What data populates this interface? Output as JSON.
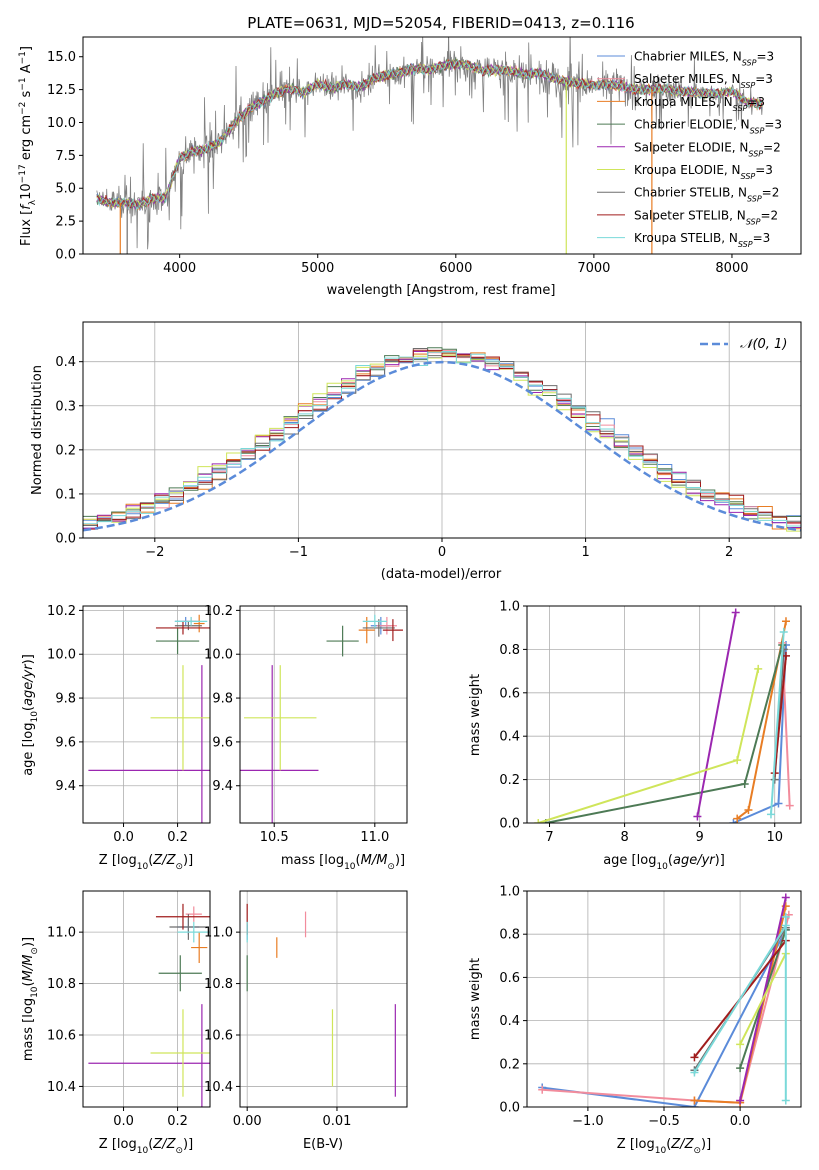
{
  "title": "PLATE=0631, MJD=52054, FIBERID=0413, z=0.116",
  "colors": {
    "chabrier_miles": "#5b8bd9",
    "salpeter_miles": "#f28c9c",
    "kroupa_miles": "#e87d24",
    "chabrier_elodie": "#4d7a55",
    "salpeter_elodie": "#9b27b0",
    "kroupa_elodie": "#cfe55a",
    "chabrier_stelib": "#6e6e6e",
    "salpeter_stelib": "#a01c1c",
    "kroupa_stelib": "#7ad9d9",
    "data_spectrum": "#808080",
    "normal_curve": "#5b8bd9"
  },
  "chart_data": [
    {
      "id": "spectrum",
      "type": "line",
      "xlabel": "wavelength [Angstrom, rest frame]",
      "ylabel": "Flux [f_λ10^-17 erg cm^-2 s^-1 A^-1]",
      "xlim": [
        3300,
        8500
      ],
      "ylim": [
        0,
        16.5
      ],
      "xticks": [
        4000,
        5000,
        6000,
        7000,
        8000
      ],
      "yticks": [
        0.0,
        2.5,
        5.0,
        7.5,
        10.0,
        12.5,
        15.0
      ],
      "grid": false,
      "legend_position": "top-right",
      "legend": [
        {
          "label": "Chabrier MILES, N",
          "sub": "SSP",
          "suffix": "=3",
          "color_key": "chabrier_miles"
        },
        {
          "label": "Salpeter MILES, N",
          "sub": "SSP",
          "suffix": "=3",
          "color_key": "salpeter_miles"
        },
        {
          "label": "Kroupa MILES, N",
          "sub": "SSP",
          "suffix": "=3",
          "color_key": "kroupa_miles"
        },
        {
          "label": "Chabrier ELODIE, N",
          "sub": "SSP",
          "suffix": "=3",
          "color_key": "chabrier_elodie"
        },
        {
          "label": "Salpeter ELODIE, N",
          "sub": "SSP",
          "suffix": "=2",
          "color_key": "salpeter_elodie"
        },
        {
          "label": "Kroupa ELODIE, N",
          "sub": "SSP",
          "suffix": "=3",
          "color_key": "kroupa_elodie"
        },
        {
          "label": "Chabrier STELIB, N",
          "sub": "SSP",
          "suffix": "=2",
          "color_key": "chabrier_stelib"
        },
        {
          "label": "Salpeter STELIB, N",
          "sub": "SSP",
          "suffix": "=2",
          "color_key": "salpeter_stelib"
        },
        {
          "label": "Kroupa STELIB, N",
          "sub": "SSP",
          "suffix": "=3",
          "color_key": "kroupa_stelib"
        }
      ],
      "continuum": [
        [
          3400,
          4.2
        ],
        [
          3500,
          3.9
        ],
        [
          3600,
          3.9
        ],
        [
          3700,
          3.7
        ],
        [
          3800,
          4.2
        ],
        [
          3900,
          4.3
        ],
        [
          4000,
          7.3
        ],
        [
          4100,
          7.8
        ],
        [
          4200,
          8.0
        ],
        [
          4300,
          8.6
        ],
        [
          4400,
          10.0
        ],
        [
          4500,
          11.0
        ],
        [
          4600,
          11.6
        ],
        [
          4700,
          12.2
        ],
        [
          4800,
          12.6
        ],
        [
          4900,
          12.3
        ],
        [
          5000,
          12.9
        ],
        [
          5100,
          12.6
        ],
        [
          5200,
          12.9
        ],
        [
          5300,
          12.7
        ],
        [
          5400,
          13.3
        ],
        [
          5500,
          13.6
        ],
        [
          5600,
          13.8
        ],
        [
          5700,
          14.1
        ],
        [
          5800,
          14.0
        ],
        [
          5900,
          14.3
        ],
        [
          6000,
          14.5
        ],
        [
          6100,
          14.3
        ],
        [
          6200,
          13.9
        ],
        [
          6300,
          14.0
        ],
        [
          6400,
          13.9
        ],
        [
          6500,
          13.6
        ],
        [
          6600,
          13.8
        ],
        [
          6700,
          13.4
        ],
        [
          6800,
          13.1
        ],
        [
          6900,
          13.0
        ],
        [
          7000,
          12.8
        ],
        [
          7100,
          12.9
        ],
        [
          7200,
          12.8
        ],
        [
          7300,
          12.5
        ],
        [
          7400,
          12.5
        ],
        [
          7500,
          12.6
        ],
        [
          7600,
          12.4
        ],
        [
          7700,
          12.3
        ],
        [
          7800,
          12.2
        ],
        [
          7900,
          12.2
        ],
        [
          8000,
          12.4
        ],
        [
          8100,
          11.6
        ],
        [
          8200,
          11.4
        ]
      ],
      "noise_sigma": [
        [
          3400,
          1.2
        ],
        [
          4000,
          2.0
        ],
        [
          5000,
          1.2
        ],
        [
          6000,
          1.5
        ],
        [
          7000,
          1.7
        ],
        [
          8000,
          0.8
        ],
        [
          8200,
          0.6
        ]
      ],
      "vertical_drops": [
        {
          "x": 3570,
          "color_key": "kroupa_miles"
        },
        {
          "x": 3620,
          "color_key": "chabrier_stelib"
        },
        {
          "x": 6800,
          "color_key": "kroupa_elodie"
        },
        {
          "x": 7420,
          "color_key": "kroupa_miles"
        }
      ]
    },
    {
      "id": "residuals",
      "type": "step_histogram",
      "xlabel": "(data-model)/error",
      "ylabel": "Normed distribution",
      "xlim": [
        -2.5,
        2.5
      ],
      "ylim": [
        0,
        0.49
      ],
      "xticks": [
        -2,
        -1,
        0,
        1,
        2
      ],
      "yticks": [
        0.0,
        0.1,
        0.2,
        0.3,
        0.4
      ],
      "grid": true,
      "bin_width": 0.1,
      "legend_position": "top-right",
      "legend_label": "𝒩(0, 1)"
    },
    {
      "id": "age_vs_Z",
      "type": "errorbar",
      "xlabel": "Z [log10(Z/Z⊙)]",
      "ylabel": "age [log10(age/yr)]",
      "xlim": [
        -0.15,
        0.32
      ],
      "ylim": [
        9.23,
        10.22
      ],
      "xticks": [
        0.0,
        0.2
      ],
      "yticks": [
        9.4,
        9.6,
        9.8,
        10.0,
        10.2
      ],
      "grid": true,
      "points": [
        {
          "x": 0.23,
          "xerr": 0.04,
          "y": 10.15,
          "yerr": 0.02,
          "color_key": "chabrier_miles"
        },
        {
          "x": 0.25,
          "xerr": 0.03,
          "y": 10.15,
          "yerr": 0.02,
          "color_key": "salpeter_miles"
        },
        {
          "x": 0.28,
          "xerr": 0.02,
          "y": 10.14,
          "yerr": 0.04,
          "color_key": "kroupa_miles"
        },
        {
          "x": 0.2,
          "xerr": 0.08,
          "y": 10.06,
          "yerr": 0.06,
          "color_key": "chabrier_elodie"
        },
        {
          "x": 0.29,
          "xerr": 0.42,
          "y": 9.47,
          "yerr": 0.48,
          "color_key": "salpeter_elodie"
        },
        {
          "x": 0.22,
          "xerr": 0.12,
          "y": 9.71,
          "yerr": 0.24,
          "color_key": "kroupa_elodie"
        },
        {
          "x": 0.24,
          "xerr": 0.05,
          "y": 10.13,
          "yerr": 0.02,
          "color_key": "chabrier_stelib"
        },
        {
          "x": 0.22,
          "xerr": 0.1,
          "y": 10.12,
          "yerr": 0.03,
          "color_key": "salpeter_stelib"
        },
        {
          "x": 0.25,
          "xerr": 0.06,
          "y": 10.15,
          "yerr": 0.02,
          "color_key": "kroupa_stelib"
        }
      ]
    },
    {
      "id": "age_vs_mass",
      "type": "errorbar",
      "xlabel": "mass [log10(M/M⊙)]",
      "ylabel": "",
      "xlim": [
        10.33,
        11.16
      ],
      "ylim": [
        9.23,
        10.22
      ],
      "xticks": [
        10.5,
        11.0
      ],
      "yticks": [
        9.4,
        9.6,
        9.8,
        10.0,
        10.2
      ],
      "grid": true,
      "points": [
        {
          "x": 11.03,
          "xerr": 0.05,
          "y": 10.13,
          "yerr": 0.04,
          "color_key": "chabrier_miles"
        },
        {
          "x": 11.06,
          "xerr": 0.05,
          "y": 10.13,
          "yerr": 0.04,
          "color_key": "salpeter_miles"
        },
        {
          "x": 10.96,
          "xerr": 0.04,
          "y": 10.11,
          "yerr": 0.06,
          "color_key": "kroupa_miles"
        },
        {
          "x": 10.84,
          "xerr": 0.08,
          "y": 10.06,
          "yerr": 0.07,
          "color_key": "chabrier_elodie"
        },
        {
          "x": 10.49,
          "xerr": 0.23,
          "y": 9.47,
          "yerr": 0.48,
          "color_key": "salpeter_elodie"
        },
        {
          "x": 10.53,
          "xerr": 0.18,
          "y": 9.71,
          "yerr": 0.24,
          "color_key": "kroupa_elodie"
        },
        {
          "x": 11.02,
          "xerr": 0.08,
          "y": 10.12,
          "yerr": 0.04,
          "color_key": "chabrier_stelib"
        },
        {
          "x": 11.09,
          "xerr": 0.05,
          "y": 10.11,
          "yerr": 0.05,
          "color_key": "salpeter_stelib"
        },
        {
          "x": 11.0,
          "xerr": 0.06,
          "y": 10.15,
          "yerr": 0.03,
          "color_key": "kroupa_stelib"
        }
      ]
    },
    {
      "id": "weight_vs_age",
      "type": "line",
      "xlabel": "age [log10(age/yr)]",
      "ylabel": "mass weight",
      "xlim": [
        6.7,
        10.35
      ],
      "ylim": [
        0,
        1.0
      ],
      "xticks": [
        7,
        8,
        9,
        10
      ],
      "yticks": [
        0.0,
        0.2,
        0.4,
        0.6,
        0.8,
        1.0
      ],
      "grid": true,
      "series": [
        {
          "color_key": "chabrier_miles",
          "points": [
            [
              9.45,
              0.0
            ],
            [
              10.05,
              0.09
            ],
            [
              10.15,
              0.82
            ]
          ]
        },
        {
          "color_key": "salpeter_miles",
          "points": [
            [
              10.1,
              0.83
            ],
            [
              10.2,
              0.08
            ]
          ]
        },
        {
          "color_key": "kroupa_miles",
          "points": [
            [
              9.5,
              0.02
            ],
            [
              9.65,
              0.06
            ],
            [
              10.15,
              0.93
            ]
          ]
        },
        {
          "color_key": "chabrier_elodie",
          "points": [
            [
              6.95,
              0.0
            ],
            [
              9.6,
              0.18
            ],
            [
              10.1,
              0.82
            ]
          ]
        },
        {
          "color_key": "salpeter_elodie",
          "points": [
            [
              8.97,
              0.03
            ],
            [
              9.48,
              0.97
            ]
          ]
        },
        {
          "color_key": "kroupa_elodie",
          "points": [
            [
              6.85,
              0.0
            ],
            [
              9.5,
              0.29
            ],
            [
              9.78,
              0.71
            ]
          ]
        },
        {
          "color_key": "chabrier_stelib",
          "points": [
            [
              10.0,
              0.2
            ],
            [
              10.12,
              0.8
            ]
          ]
        },
        {
          "color_key": "salpeter_stelib",
          "points": [
            [
              10.0,
              0.23
            ],
            [
              10.15,
              0.77
            ]
          ]
        },
        {
          "color_key": "kroupa_stelib",
          "points": [
            [
              9.95,
              0.04
            ],
            [
              10.12,
              0.88
            ]
          ]
        }
      ]
    },
    {
      "id": "mass_vs_Z",
      "type": "errorbar",
      "xlabel": "Z [log10(Z/Z⊙)]",
      "ylabel": "mass [log10(M/M⊙)]",
      "xlim": [
        -0.15,
        0.32
      ],
      "ylim": [
        10.32,
        11.16
      ],
      "xticks": [
        0.0,
        0.2
      ],
      "yticks": [
        10.4,
        10.6,
        10.8,
        11.0
      ],
      "grid": true,
      "points": [
        {
          "x": 0.24,
          "xerr": 0.04,
          "y": 11.02,
          "yerr": 0.03,
          "color_key": "chabrier_miles"
        },
        {
          "x": 0.26,
          "xerr": 0.03,
          "y": 11.07,
          "yerr": 0.03,
          "color_key": "salpeter_miles"
        },
        {
          "x": 0.28,
          "xerr": 0.03,
          "y": 10.94,
          "yerr": 0.06,
          "color_key": "kroupa_miles"
        },
        {
          "x": 0.21,
          "xerr": 0.08,
          "y": 10.84,
          "yerr": 0.07,
          "color_key": "chabrier_elodie"
        },
        {
          "x": 0.29,
          "xerr": 0.42,
          "y": 10.49,
          "yerr": 0.23,
          "color_key": "salpeter_elodie"
        },
        {
          "x": 0.22,
          "xerr": 0.12,
          "y": 10.53,
          "yerr": 0.17,
          "color_key": "kroupa_elodie"
        },
        {
          "x": 0.24,
          "xerr": 0.07,
          "y": 11.02,
          "yerr": 0.05,
          "color_key": "chabrier_stelib"
        },
        {
          "x": 0.22,
          "xerr": 0.1,
          "y": 11.06,
          "yerr": 0.05,
          "color_key": "salpeter_stelib"
        },
        {
          "x": 0.26,
          "xerr": 0.06,
          "y": 11.0,
          "yerr": 0.04,
          "color_key": "kroupa_stelib"
        }
      ]
    },
    {
      "id": "mass_vs_ebv",
      "type": "errorbar",
      "xlabel": "E(B-V)",
      "ylabel": "",
      "xlim": [
        -0.0008,
        0.0178
      ],
      "ylim": [
        10.32,
        11.16
      ],
      "xticks": [
        0.0,
        0.01
      ],
      "yticks": [
        10.4,
        10.6,
        10.8,
        11.0
      ],
      "grid": true,
      "points": [
        {
          "x": 0.0,
          "xerr": 0.0,
          "y": 11.0,
          "yerr": 0.03,
          "color_key": "chabrier_miles"
        },
        {
          "x": 0.0065,
          "xerr": 0.0,
          "y": 11.03,
          "yerr": 0.05,
          "color_key": "salpeter_miles"
        },
        {
          "x": 0.0033,
          "xerr": 0.0,
          "y": 10.94,
          "yerr": 0.04,
          "color_key": "kroupa_miles"
        },
        {
          "x": 0.0,
          "xerr": 0.0,
          "y": 10.84,
          "yerr": 0.07,
          "color_key": "chabrier_elodie"
        },
        {
          "x": 0.0165,
          "xerr": 0.0,
          "y": 10.54,
          "yerr": 0.18,
          "color_key": "salpeter_elodie"
        },
        {
          "x": 0.0095,
          "xerr": 0.0,
          "y": 10.55,
          "yerr": 0.15,
          "color_key": "kroupa_elodie"
        },
        {
          "x": 0.0,
          "xerr": 0.0,
          "y": 11.05,
          "yerr": 0.06,
          "color_key": "salpeter_stelib"
        },
        {
          "x": 0.0,
          "xerr": 0.0,
          "y": 11.0,
          "yerr": 0.04,
          "color_key": "kroupa_stelib"
        }
      ]
    },
    {
      "id": "weight_vs_Z",
      "type": "line",
      "xlabel": "Z [log10(Z/Z⊙)]",
      "ylabel": "mass weight",
      "xlim": [
        -1.4,
        0.4
      ],
      "ylim": [
        0,
        1.0
      ],
      "xticks": [
        -1.0,
        -0.5,
        0.0
      ],
      "yticks": [
        0.0,
        0.2,
        0.4,
        0.6,
        0.8,
        1.0
      ],
      "grid": true,
      "series": [
        {
          "color_key": "chabrier_miles",
          "points": [
            [
              -1.3,
              0.09
            ],
            [
              -0.3,
              0.0
            ],
            [
              0.3,
              0.82
            ]
          ]
        },
        {
          "color_key": "salpeter_miles",
          "points": [
            [
              -1.3,
              0.08
            ],
            [
              -0.3,
              0.03
            ],
            [
              0.0,
              0.02
            ],
            [
              0.32,
              0.89
            ]
          ]
        },
        {
          "color_key": "kroupa_miles",
          "points": [
            [
              -0.3,
              0.03
            ],
            [
              0.0,
              0.02
            ],
            [
              0.3,
              0.93
            ]
          ]
        },
        {
          "color_key": "chabrier_elodie",
          "points": [
            [
              0.0,
              0.18
            ],
            [
              0.3,
              0.82
            ]
          ]
        },
        {
          "color_key": "salpeter_elodie",
          "points": [
            [
              0.0,
              0.03
            ],
            [
              0.3,
              0.97
            ]
          ]
        },
        {
          "color_key": "kroupa_elodie",
          "points": [
            [
              0.0,
              0.29
            ],
            [
              0.3,
              0.71
            ]
          ]
        },
        {
          "color_key": "chabrier_stelib",
          "points": [
            [
              -0.3,
              0.17
            ],
            [
              0.3,
              0.83
            ]
          ]
        },
        {
          "color_key": "salpeter_stelib",
          "points": [
            [
              -0.3,
              0.23
            ],
            [
              0.3,
              0.77
            ]
          ]
        },
        {
          "color_key": "kroupa_stelib",
          "points": [
            [
              -0.3,
              0.16
            ],
            [
              0.3,
              0.84
            ]
          ]
        },
        {
          "color_key": "kroupa_stelib",
          "points": [
            [
              0.3,
              0.03
            ],
            [
              0.3,
              0.88
            ]
          ]
        }
      ]
    }
  ]
}
